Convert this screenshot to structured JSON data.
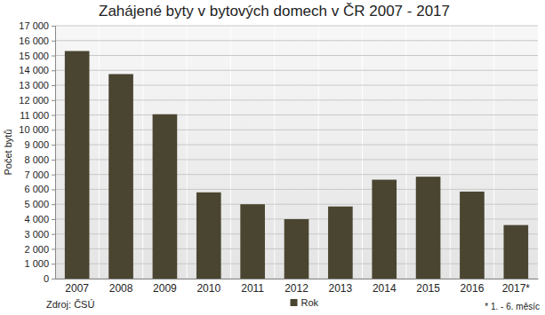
{
  "chart_data": {
    "type": "bar",
    "title": "Zahájené byty v bytových domech v ČR 2007 - 2017",
    "y_label": "Počet bytů",
    "categories": [
      "2007",
      "2008",
      "2009",
      "2010",
      "2011",
      "2012",
      "2013",
      "2014",
      "2015",
      "2016",
      "2017*"
    ],
    "series": [
      {
        "name": "Rok",
        "color": "#4a4531",
        "values": [
          15300,
          13750,
          11050,
          5800,
          5000,
          4000,
          4850,
          6650,
          6850,
          5850,
          3600
        ]
      }
    ],
    "ylim": [
      0,
      17000
    ],
    "yticks": [
      0,
      {
        "value": 1000,
        "label": "1 000"
      },
      {
        "value": 2000,
        "label": "2 000"
      },
      {
        "value": 3000,
        "label": "3 000"
      },
      {
        "value": 4000,
        "label": "4 000"
      },
      {
        "value": 5000,
        "label": "5 000"
      },
      {
        "value": 6000,
        "label": "6 000"
      },
      {
        "value": 7000,
        "label": "7 000"
      },
      {
        "value": 8000,
        "label": "8 000"
      },
      {
        "value": 9000,
        "label": "9 000"
      },
      {
        "value": 10000,
        "label": "10 000"
      },
      {
        "value": 11000,
        "label": "11 000"
      },
      {
        "value": 12000,
        "label": "12 000"
      },
      {
        "value": 13000,
        "label": "13 000"
      },
      {
        "value": 14000,
        "label": "14 000"
      },
      {
        "value": 15000,
        "label": "15 000"
      },
      {
        "value": 16000,
        "label": "16 000"
      },
      {
        "value": 17000,
        "label": "17 000"
      }
    ],
    "grid": true,
    "legend": "bottom",
    "annotations": [
      "Zdroj: ČSÚ",
      "* 1. - 6. měsíc"
    ]
  }
}
